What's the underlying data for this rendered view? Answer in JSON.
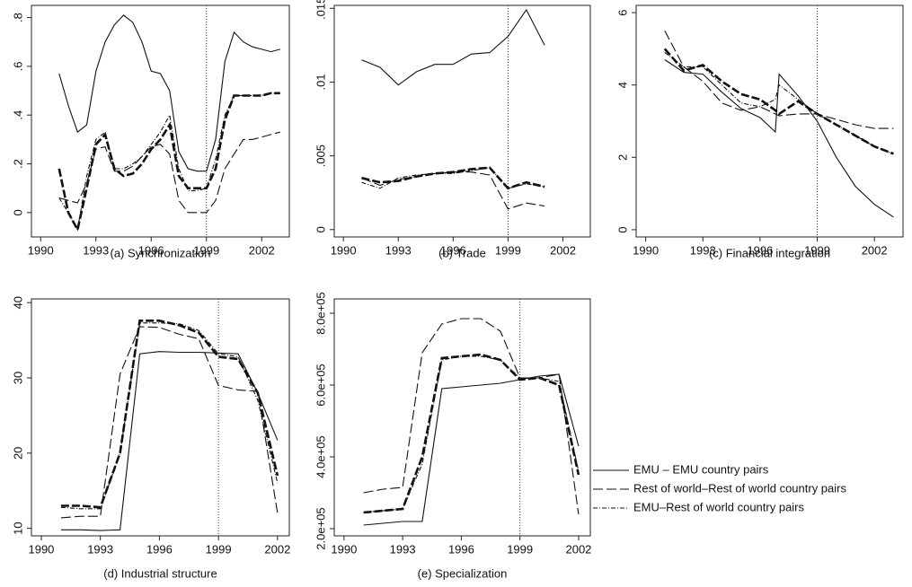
{
  "chart_data": [
    {
      "type": "line",
      "title": "(a) Synchronization",
      "x": [
        1991,
        1991.5,
        1992,
        1992.5,
        1993,
        1993.5,
        1994,
        1994.5,
        1995,
        1995.5,
        1996,
        1996.5,
        1997,
        1997.5,
        1998,
        1998.5,
        1999,
        1999.5,
        2000,
        2000.5,
        2001,
        2001.5,
        2002,
        2002.5,
        2003
      ],
      "xlim": [
        1989.5,
        2003.5
      ],
      "xticks": [
        1990,
        1993,
        1996,
        1999,
        2002
      ],
      "ylim": [
        -0.1,
        0.85
      ],
      "yticks": [
        0,
        {
          "value": 0.2,
          "label": ".2"
        },
        {
          "value": 0.4,
          "label": ".4"
        },
        {
          "value": 0.6,
          "label": ".6"
        },
        {
          "value": 0.8,
          "label": ".8"
        }
      ],
      "vline": 1999,
      "series": [
        {
          "style": "solid",
          "values": [
            0.57,
            0.44,
            0.33,
            0.36,
            0.58,
            0.7,
            0.77,
            0.81,
            0.78,
            0.7,
            0.58,
            0.57,
            0.5,
            0.25,
            0.18,
            0.17,
            0.17,
            0.3,
            0.62,
            0.74,
            0.7,
            0.68,
            0.67,
            0.66,
            0.67
          ]
        },
        {
          "style": "long-dash",
          "values": [
            0.06,
            0.05,
            0.04,
            0.12,
            0.26,
            0.27,
            0.17,
            0.17,
            0.19,
            0.23,
            0.27,
            0.28,
            0.24,
            0.05,
            0,
            0,
            0,
            0.05,
            0.18,
            0.24,
            0.3,
            0.3,
            0.31,
            0.32,
            0.33
          ]
        },
        {
          "style": "thick-dash",
          "values": [
            0.18,
            0,
            -0.07,
            0.1,
            0.28,
            0.32,
            0.18,
            0.15,
            0.16,
            0.2,
            0.26,
            0.3,
            0.36,
            0.15,
            0.1,
            0.1,
            0.1,
            0.18,
            0.38,
            0.48,
            0.48,
            0.48,
            0.48,
            0.49,
            0.49
          ]
        },
        {
          "style": "dash-dot",
          "values": [
            0.06,
            0,
            -0.07,
            0.15,
            0.3,
            0.33,
            0.18,
            0.18,
            0.2,
            0.23,
            0.28,
            0.33,
            0.4,
            0.18,
            0.09,
            0.09,
            0.1,
            0.22,
            0.4,
            0.48,
            0.48,
            0.48,
            0.48,
            0.49,
            0.49
          ]
        }
      ]
    },
    {
      "type": "line",
      "title": "(b) Trade",
      "x": [
        1991,
        1992,
        1993,
        1994,
        1995,
        1996,
        1997,
        1998,
        1999,
        2000,
        2001
      ],
      "xlim": [
        1989.5,
        2003.5
      ],
      "xticks": [
        1990,
        1993,
        1996,
        1999,
        2002
      ],
      "ylim": [
        -0.0005,
        0.0152
      ],
      "yticks": [
        0,
        {
          "value": 0.005,
          "label": ".005"
        },
        {
          "value": 0.01,
          "label": ".01"
        },
        {
          "value": 0.015,
          "label": ".015"
        }
      ],
      "vline": 1999,
      "series": [
        {
          "style": "solid",
          "values": [
            0.0115,
            0.011,
            0.0098,
            0.0107,
            0.0112,
            0.0112,
            0.0119,
            0.012,
            0.0131,
            0.0149,
            0.0125
          ]
        },
        {
          "style": "long-dash",
          "values": [
            0.0035,
            0.003,
            0.0034,
            0.0036,
            0.0038,
            0.0039,
            0.0039,
            0.0037,
            0.0014,
            0.0018,
            0.0016
          ]
        },
        {
          "style": "thick-dash",
          "values": [
            0.0035,
            0.0032,
            0.0033,
            0.0036,
            0.0038,
            0.0039,
            0.0041,
            0.0042,
            0.0028,
            0.0032,
            0.0029
          ]
        },
        {
          "style": "dash-dot",
          "values": [
            0.0032,
            0.0028,
            0.0035,
            0.0037,
            0.0038,
            0.0038,
            0.004,
            0.0042,
            0.0028,
            0.0031,
            0.0029
          ]
        }
      ]
    },
    {
      "type": "line",
      "title": "(c) Financial integration",
      "x": [
        1991,
        1992,
        1993,
        1994,
        1995,
        1996,
        1996.8,
        1997,
        1998,
        1999,
        2000,
        2001,
        2002,
        2003
      ],
      "xlim": [
        1989.5,
        2003.5
      ],
      "xticks": [
        1990,
        1993,
        1996,
        1999,
        2002
      ],
      "ylim": [
        -0.2,
        6.2
      ],
      "yticks": [
        0,
        2,
        4,
        6
      ],
      "vline": 1999,
      "series": [
        {
          "style": "solid",
          "values": [
            4.7,
            4.35,
            4.3,
            3.8,
            3.35,
            3.1,
            2.7,
            4.3,
            3.7,
            3.0,
            2.0,
            1.2,
            0.7,
            0.35
          ]
        },
        {
          "style": "long-dash",
          "values": [
            5.5,
            4.5,
            4.1,
            3.5,
            3.3,
            3.4,
            3.2,
            3.15,
            3.2,
            3.2,
            3.05,
            2.9,
            2.8,
            2.8
          ]
        },
        {
          "style": "thick-dash",
          "values": [
            5.0,
            4.4,
            4.55,
            4.1,
            3.75,
            3.6,
            3.3,
            3.2,
            3.55,
            3.2,
            2.9,
            2.6,
            2.3,
            2.1
          ]
        },
        {
          "style": "dash-dot",
          "values": [
            4.9,
            4.5,
            4.5,
            4.0,
            3.5,
            3.4,
            3.6,
            4.0,
            3.6,
            3.2,
            2.9,
            2.6,
            2.3,
            2.1
          ]
        }
      ]
    },
    {
      "type": "line",
      "title": "(d) Industrial structure",
      "x": [
        1991,
        1992,
        1993,
        1994,
        1995,
        1996,
        1997,
        1998,
        1999,
        2000,
        2001,
        2002
      ],
      "xlim": [
        1989.5,
        2002.6
      ],
      "xticks": [
        1990,
        1993,
        1996,
        1999,
        2002
      ],
      "ylim": [
        9,
        40.5
      ],
      "yticks": [
        10,
        20,
        30,
        40
      ],
      "vline": 1999,
      "series": [
        {
          "style": "solid",
          "values": [
            9.8,
            9.8,
            9.7,
            9.8,
            33.2,
            33.5,
            33.4,
            33.4,
            33.3,
            33.2,
            28,
            21.7
          ]
        },
        {
          "style": "long-dash",
          "values": [
            11.4,
            11.6,
            11.6,
            30.5,
            36.8,
            36.7,
            35.8,
            35.2,
            29.0,
            28.4,
            28.2,
            12.0
          ]
        },
        {
          "style": "thick-dash",
          "values": [
            13.0,
            13.0,
            12.8,
            20,
            37.6,
            37.6,
            37,
            36,
            32.8,
            32.5,
            28,
            17
          ]
        },
        {
          "style": "dash-dot",
          "values": [
            12.8,
            12.6,
            12.6,
            20,
            37.3,
            37.3,
            37.2,
            36.3,
            33.2,
            32.8,
            27,
            16
          ]
        }
      ]
    },
    {
      "type": "line",
      "title": "(e) Specialization",
      "x": [
        1991,
        1992,
        1993,
        1994,
        1995,
        1996,
        1997,
        1998,
        1999,
        2000,
        2001,
        2002
      ],
      "xlim": [
        1989.5,
        2002.6
      ],
      "xticks": [
        1990,
        1993,
        1996,
        1999,
        2002
      ],
      "ylim": [
        180000,
        840000
      ],
      "yticks": [
        {
          "value": 200000,
          "label": "2.0e+05"
        },
        {
          "value": 400000,
          "label": "4.0e+05"
        },
        {
          "value": 600000,
          "label": "6.0e+05"
        },
        {
          "value": 800000,
          "label": "8.0e+05"
        }
      ],
      "vline": 1999,
      "series": [
        {
          "style": "solid",
          "values": [
            210000,
            215000,
            220000,
            220000,
            590000,
            595000,
            600000,
            605000,
            615000,
            625000,
            630000,
            430000
          ]
        },
        {
          "style": "long-dash",
          "values": [
            300000,
            310000,
            315000,
            690000,
            770000,
            785000,
            785000,
            750000,
            620000,
            620000,
            630000,
            240000
          ]
        },
        {
          "style": "thick-dash",
          "values": [
            245000,
            250000,
            255000,
            400000,
            675000,
            680000,
            685000,
            670000,
            615000,
            620000,
            600000,
            350000
          ]
        },
        {
          "style": "dash-dot",
          "values": [
            245000,
            250000,
            255000,
            380000,
            670000,
            680000,
            680000,
            670000,
            620000,
            620000,
            610000,
            360000
          ]
        }
      ]
    }
  ],
  "legend": {
    "entries": [
      {
        "name": "EMU – EMU country pairs",
        "style": "solid"
      },
      {
        "name": "Rest of world–Rest of world country pairs",
        "style": "long-dash"
      },
      {
        "name": "EMU–Rest of world country pairs",
        "style": "dash-dot"
      }
    ]
  }
}
